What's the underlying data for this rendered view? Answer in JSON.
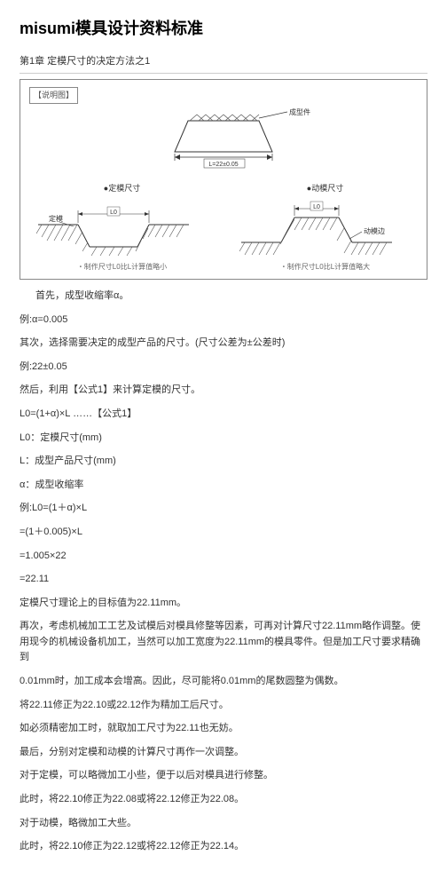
{
  "title": "misumi模具设计资料标准",
  "chapter": "第1章 定模尺寸的决定方法之1",
  "diagram": {
    "box_label": "【说明图】",
    "top_annotation": "成型件",
    "top_dim": "L=22±0.05",
    "left_title": "●定模尺寸",
    "left_label": "定模",
    "left_dim": "L0",
    "left_caption": "・制作尺寸L0比L计算值略小",
    "right_title": "●动模尺寸",
    "right_label": "动模边",
    "right_dim": "L0",
    "right_caption": "・制作尺寸L0比L计算值略大",
    "colors": {
      "stroke": "#333333",
      "hatch": "#555555",
      "fill_none": "none",
      "bg": "#ffffff"
    }
  },
  "lines": [
    {
      "text": "首先，成型收缩率α。",
      "indent": true
    },
    {
      "text": "例:α=0.005"
    },
    {
      "text": "其次，选择需要决定的成型产品的尺寸。(尺寸公差为±公差时)"
    },
    {
      "text": "例:22±0.05"
    },
    {
      "text": "然后，利用【公式1】来计算定模的尺寸。"
    },
    {
      "text": "L0=(1+α)×L  ……【公式1】"
    },
    {
      "text": "L0：定模尺寸(mm)"
    },
    {
      "text": "L：成型产品尺寸(mm)"
    },
    {
      "text": "α：成型收缩率"
    },
    {
      "text": "例:L0=(1＋α)×L"
    },
    {
      "text": "=(1＋0.005)×L"
    },
    {
      "text": "=1.005×22"
    },
    {
      "text": "=22.11"
    },
    {
      "text": "定模尺寸理论上的目标值为22.11mm。"
    },
    {
      "text": "再次，考虑机械加工工艺及试模后对模具修整等因素，可再对计算尺寸22.11mm略作调整。使用现今的机械设备机加工，当然可以加工宽度为22.11mm的模具零件。但是加工尺寸要求精确到"
    },
    {
      "text": "0.01mm时，加工成本会增高。因此，尽可能将0.01mm的尾数圆整为偶数。"
    },
    {
      "text": "将22.11修正为22.10或22.12作为精加工后尺寸。"
    },
    {
      "text": "如必须精密加工时，就取加工尺寸为22.11也无妨。"
    },
    {
      "text": "最后，分别对定模和动模的计算尺寸再作一次调整。"
    },
    {
      "text": "对于定模，可以略微加工小些，便于以后对模具进行修整。"
    },
    {
      "text": "此时，将22.10修正为22.08或将22.12修正为22.08。"
    },
    {
      "text": "对于动模，略微加工大些。"
    },
    {
      "text": "此时，将22.10修正为22.12或将22.12修正为22.14。"
    }
  ]
}
